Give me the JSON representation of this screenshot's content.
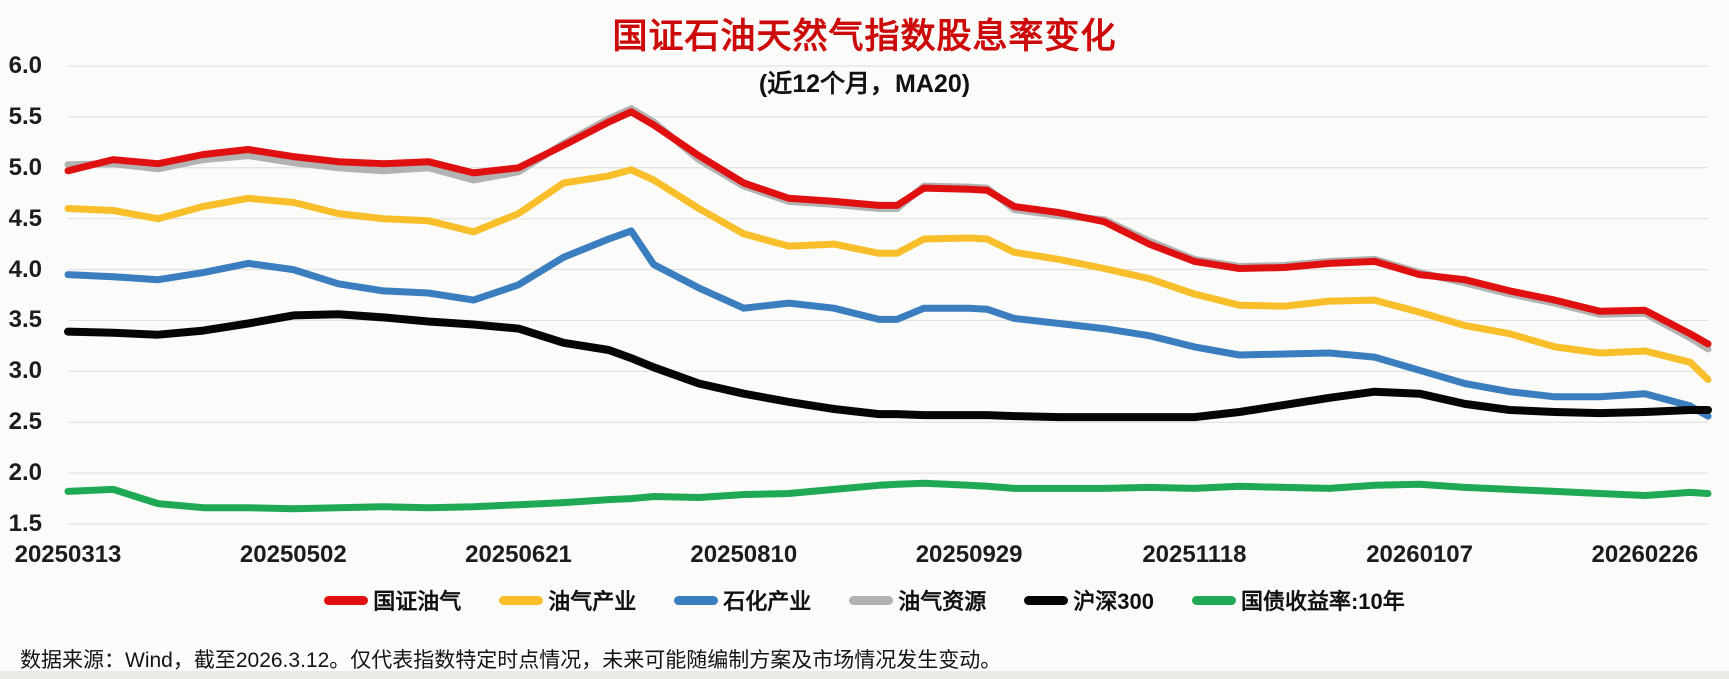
{
  "header": {
    "title": "国证石油天然气指数股息率变化",
    "title_color": "#cc0a0a",
    "subtitle": "(近12个月，MA20)"
  },
  "footer": {
    "note": "数据来源：Wind，截至2026.3.12。仅代表指数特定时点情况，未来可能随编制方案及市场情况发生变动。"
  },
  "chart_data": {
    "type": "line",
    "title": "国证石油天然气指数股息率变化",
    "subtitle": "(近12个月，MA20)",
    "grid": "horizontal",
    "grid_color": "#dcdcda",
    "legend_position": "bottom",
    "x_axis": {
      "unit": "trading-date",
      "total_days": 364,
      "tick_days": [
        0,
        50,
        100,
        150,
        200,
        250,
        300,
        350
      ],
      "tick_labels": [
        "20250313",
        "20250502",
        "20250621",
        "20250810",
        "20250929",
        "20251118",
        "20260107",
        "20260226"
      ]
    },
    "y_axis": {
      "min": 1.5,
      "max": 6.0,
      "tick_step": 0.5,
      "tick_labels": [
        "6.0",
        "5.5",
        "5.0",
        "4.5",
        "4.0",
        "3.5",
        "3.0",
        "2.5",
        "2.0",
        "1.5"
      ]
    },
    "sample_days": [
      0,
      10,
      20,
      30,
      40,
      50,
      60,
      70,
      80,
      90,
      100,
      110,
      120,
      125,
      130,
      140,
      150,
      160,
      170,
      180,
      184,
      190,
      200,
      204,
      210,
      220,
      230,
      240,
      250,
      260,
      270,
      280,
      290,
      300,
      310,
      320,
      330,
      340,
      350,
      360,
      364
    ],
    "series": [
      {
        "name": "国证油气",
        "color": "#e01010",
        "width": 7,
        "values": [
          4.97,
          5.08,
          5.04,
          5.13,
          5.18,
          5.11,
          5.06,
          5.04,
          5.06,
          4.95,
          5.0,
          5.22,
          5.45,
          5.55,
          5.42,
          5.12,
          4.85,
          4.7,
          4.67,
          4.63,
          4.63,
          4.8,
          4.79,
          4.78,
          4.62,
          4.56,
          4.47,
          4.25,
          4.08,
          4.01,
          4.02,
          4.06,
          4.08,
          3.95,
          3.9,
          3.79,
          3.7,
          3.59,
          3.6,
          3.37,
          3.27
        ]
      },
      {
        "name": "油气产业",
        "color": "#f8bf2b",
        "width": 7,
        "values": [
          4.6,
          4.58,
          4.5,
          4.62,
          4.7,
          4.66,
          4.55,
          4.5,
          4.48,
          4.37,
          4.55,
          4.85,
          4.92,
          4.98,
          4.88,
          4.6,
          4.35,
          4.23,
          4.25,
          4.16,
          4.16,
          4.3,
          4.31,
          4.3,
          4.17,
          4.1,
          4.01,
          3.91,
          3.76,
          3.65,
          3.64,
          3.69,
          3.7,
          3.58,
          3.45,
          3.37,
          3.24,
          3.18,
          3.2,
          3.09,
          2.92
        ]
      },
      {
        "name": "石化产业",
        "color": "#3b7ebf",
        "width": 7,
        "values": [
          3.95,
          3.93,
          3.9,
          3.97,
          4.06,
          4.0,
          3.86,
          3.79,
          3.77,
          3.7,
          3.85,
          4.12,
          4.3,
          4.38,
          4.05,
          3.82,
          3.62,
          3.67,
          3.62,
          3.51,
          3.51,
          3.62,
          3.62,
          3.61,
          3.52,
          3.47,
          3.42,
          3.35,
          3.24,
          3.16,
          3.17,
          3.18,
          3.14,
          3.01,
          2.88,
          2.8,
          2.75,
          2.75,
          2.78,
          2.66,
          2.56
        ]
      },
      {
        "name": "油气资源",
        "color": "#b2b2b2",
        "width": 7,
        "values": [
          5.03,
          5.04,
          4.99,
          5.08,
          5.12,
          5.05,
          5.0,
          4.97,
          5.0,
          4.88,
          4.96,
          5.24,
          5.48,
          5.58,
          5.45,
          5.08,
          4.82,
          4.67,
          4.64,
          4.6,
          4.6,
          4.82,
          4.81,
          4.8,
          4.59,
          4.53,
          4.49,
          4.28,
          4.1,
          4.03,
          4.04,
          4.08,
          4.1,
          3.97,
          3.87,
          3.76,
          3.67,
          3.56,
          3.57,
          3.33,
          3.22
        ]
      },
      {
        "name": "沪深300",
        "color": "#050505",
        "width": 8,
        "values": [
          3.39,
          3.38,
          3.36,
          3.4,
          3.47,
          3.55,
          3.56,
          3.53,
          3.49,
          3.46,
          3.42,
          3.28,
          3.21,
          3.13,
          3.04,
          2.88,
          2.78,
          2.7,
          2.63,
          2.58,
          2.58,
          2.57,
          2.57,
          2.57,
          2.56,
          2.55,
          2.55,
          2.55,
          2.55,
          2.6,
          2.67,
          2.74,
          2.8,
          2.78,
          2.68,
          2.62,
          2.6,
          2.59,
          2.6,
          2.62,
          2.62
        ]
      },
      {
        "name": "国债收益率:10年",
        "color": "#1fa954",
        "width": 7,
        "values": [
          1.82,
          1.84,
          1.7,
          1.66,
          1.66,
          1.65,
          1.66,
          1.67,
          1.66,
          1.67,
          1.69,
          1.71,
          1.74,
          1.75,
          1.77,
          1.76,
          1.79,
          1.8,
          1.84,
          1.88,
          1.89,
          1.9,
          1.88,
          1.87,
          1.85,
          1.85,
          1.85,
          1.86,
          1.85,
          1.87,
          1.86,
          1.85,
          1.88,
          1.89,
          1.86,
          1.84,
          1.82,
          1.8,
          1.78,
          1.81,
          1.8
        ]
      }
    ],
    "draw_order": [
      3,
      1,
      2,
      4,
      5,
      0
    ]
  }
}
